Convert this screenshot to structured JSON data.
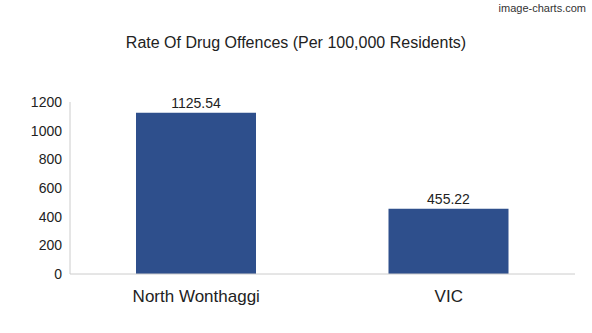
{
  "chart_data": {
    "type": "bar",
    "title": "Rate Of Drug Offences (Per 100,000 Residents)",
    "annotations": [
      "image-charts.com"
    ],
    "categories": [
      "North Wonthaggi",
      "VIC"
    ],
    "values": [
      1125.54,
      455.22
    ],
    "color": "#2e4f8c",
    "ylim": [
      0,
      1200
    ],
    "yticks": [
      0,
      200,
      400,
      600,
      800,
      1000,
      1200
    ],
    "grid": false,
    "data_labels": true
  }
}
